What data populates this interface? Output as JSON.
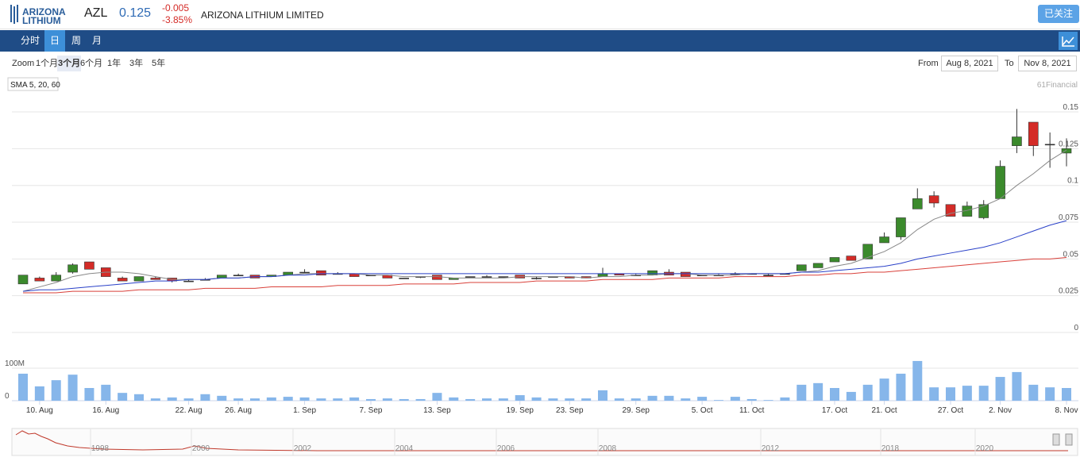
{
  "header": {
    "logo_line1": "ARIZONA",
    "logo_line2": "LITHIUM",
    "symbol": "AZL",
    "price": "0.125",
    "change": "-0.005",
    "change_pct": "-3.85%",
    "name": "ARIZONA LITHIUM LIMITED",
    "follow_button": "已关注"
  },
  "tabs": {
    "items": [
      "分时",
      "日",
      "周",
      "月"
    ],
    "active": 1
  },
  "zoom": {
    "label": "Zoom",
    "options": [
      "1个月",
      "3个月",
      "6个月",
      "1年",
      "3年",
      "5年"
    ],
    "active": 1
  },
  "range": {
    "from_label": "From",
    "from": "Aug 8, 2021",
    "to_label": "To",
    "to": "Nov 8, 2021"
  },
  "chart_data": {
    "type": "candlestick",
    "indicator_label": "SMA 5, 20, 60",
    "credit": "61Financial",
    "categories": [
      null,
      "10. Aug",
      null,
      null,
      null,
      "16. Aug",
      null,
      null,
      null,
      null,
      "22. Aug",
      null,
      null,
      "26. Aug",
      null,
      null,
      null,
      "1. Sep",
      null,
      null,
      null,
      "7. Sep",
      null,
      null,
      null,
      "13. Sep",
      null,
      null,
      null,
      null,
      "19. Sep",
      null,
      null,
      "23. Sep",
      null,
      null,
      null,
      "29. Sep",
      null,
      null,
      null,
      "5. Oct",
      null,
      null,
      "11. Oct",
      null,
      null,
      null,
      null,
      "17. Oct",
      null,
      null,
      "21. Oct",
      null,
      null,
      null,
      "27. Oct",
      null,
      null,
      "2. Nov",
      null,
      null,
      null,
      "8. Nov"
    ],
    "open": [
      0.033,
      0.037,
      0.035,
      0.041,
      0.048,
      0.044,
      0.037,
      0.035,
      0.037,
      0.037,
      0.035,
      0.036,
      0.037,
      0.039,
      0.039,
      0.038,
      0.039,
      0.041,
      0.042,
      0.04,
      0.04,
      0.039,
      0.039,
      0.037,
      0.038,
      0.039,
      0.036,
      0.038,
      0.038,
      0.038,
      0.039,
      0.037,
      0.038,
      0.038,
      0.038,
      0.038,
      0.04,
      0.039,
      0.039,
      0.041,
      0.041,
      0.039,
      0.039,
      0.04,
      0.04,
      0.039,
      0.04,
      0.042,
      0.044,
      0.048,
      0.052,
      0.05,
      0.061,
      0.065,
      0.084,
      0.093,
      0.087,
      0.079,
      0.078,
      0.091,
      0.127,
      0.143,
      0.128,
      0.122
    ],
    "high": [
      0.039,
      0.038,
      0.041,
      0.047,
      0.048,
      0.044,
      0.038,
      0.038,
      0.038,
      0.037,
      0.036,
      0.037,
      0.039,
      0.04,
      0.039,
      0.039,
      0.041,
      0.043,
      0.042,
      0.041,
      0.04,
      0.039,
      0.039,
      0.037,
      0.038,
      0.039,
      0.037,
      0.038,
      0.039,
      0.038,
      0.039,
      0.038,
      0.038,
      0.038,
      0.038,
      0.044,
      0.04,
      0.04,
      0.042,
      0.043,
      0.041,
      0.039,
      0.04,
      0.041,
      0.04,
      0.04,
      0.04,
      0.046,
      0.047,
      0.051,
      0.052,
      0.06,
      0.068,
      0.078,
      0.098,
      0.096,
      0.087,
      0.089,
      0.09,
      0.117,
      0.152,
      0.143,
      0.136,
      0.132
    ],
    "low": [
      0.033,
      0.035,
      0.035,
      0.04,
      0.043,
      0.038,
      0.035,
      0.035,
      0.036,
      0.034,
      0.035,
      0.036,
      0.037,
      0.039,
      0.037,
      0.038,
      0.039,
      0.041,
      0.039,
      0.04,
      0.038,
      0.039,
      0.037,
      0.037,
      0.037,
      0.036,
      0.036,
      0.038,
      0.038,
      0.038,
      0.037,
      0.036,
      0.038,
      0.037,
      0.037,
      0.038,
      0.039,
      0.039,
      0.039,
      0.039,
      0.038,
      0.039,
      0.039,
      0.04,
      0.04,
      0.039,
      0.04,
      0.042,
      0.044,
      0.048,
      0.049,
      0.05,
      0.061,
      0.063,
      0.084,
      0.085,
      0.079,
      0.079,
      0.077,
      0.091,
      0.122,
      0.12,
      0.112,
      0.113
    ],
    "close": [
      0.039,
      0.035,
      0.039,
      0.046,
      0.043,
      0.038,
      0.035,
      0.038,
      0.036,
      0.035,
      0.035,
      0.036,
      0.039,
      0.039,
      0.037,
      0.039,
      0.041,
      0.041,
      0.039,
      0.04,
      0.038,
      0.039,
      0.037,
      0.037,
      0.038,
      0.036,
      0.037,
      0.038,
      0.038,
      0.038,
      0.037,
      0.037,
      0.038,
      0.037,
      0.037,
      0.04,
      0.039,
      0.039,
      0.042,
      0.039,
      0.038,
      0.039,
      0.039,
      0.04,
      0.04,
      0.039,
      0.04,
      0.046,
      0.047,
      0.051,
      0.049,
      0.06,
      0.065,
      0.078,
      0.091,
      0.088,
      0.079,
      0.086,
      0.087,
      0.113,
      0.133,
      0.127,
      0.128,
      0.125
    ],
    "up_color": "#3b8a2c",
    "down_color": "#d42b27",
    "sma": [
      {
        "color": "#888888",
        "values": [
          0.028,
          0.031,
          0.034,
          0.038,
          0.04,
          0.041,
          0.041,
          0.04,
          0.038,
          0.036,
          0.036,
          0.036,
          0.037,
          0.037,
          0.038,
          0.038,
          0.039,
          0.04,
          0.04,
          0.04,
          0.04,
          0.039,
          0.039,
          0.038,
          0.038,
          0.038,
          0.037,
          0.037,
          0.037,
          0.037,
          0.038,
          0.038,
          0.038,
          0.038,
          0.037,
          0.038,
          0.038,
          0.039,
          0.039,
          0.04,
          0.04,
          0.039,
          0.039,
          0.039,
          0.04,
          0.04,
          0.04,
          0.041,
          0.042,
          0.045,
          0.047,
          0.051,
          0.055,
          0.061,
          0.07,
          0.077,
          0.081,
          0.083,
          0.086,
          0.091,
          0.1,
          0.108,
          0.117,
          0.124
        ]
      },
      {
        "color": "#2940c8",
        "values": [
          0.028,
          0.029,
          0.029,
          0.03,
          0.031,
          0.032,
          0.033,
          0.034,
          0.035,
          0.035,
          0.036,
          0.036,
          0.037,
          0.037,
          0.038,
          0.038,
          0.039,
          0.039,
          0.04,
          0.04,
          0.04,
          0.04,
          0.04,
          0.04,
          0.04,
          0.04,
          0.04,
          0.04,
          0.04,
          0.04,
          0.04,
          0.04,
          0.04,
          0.04,
          0.04,
          0.04,
          0.04,
          0.04,
          0.04,
          0.04,
          0.04,
          0.04,
          0.04,
          0.04,
          0.04,
          0.04,
          0.04,
          0.041,
          0.041,
          0.042,
          0.043,
          0.044,
          0.045,
          0.047,
          0.05,
          0.052,
          0.054,
          0.056,
          0.058,
          0.061,
          0.065,
          0.069,
          0.073,
          0.076
        ]
      },
      {
        "color": "#d9403a",
        "values": [
          0.027,
          0.027,
          0.027,
          0.028,
          0.028,
          0.028,
          0.028,
          0.029,
          0.029,
          0.029,
          0.029,
          0.03,
          0.03,
          0.03,
          0.03,
          0.031,
          0.031,
          0.031,
          0.031,
          0.032,
          0.032,
          0.032,
          0.032,
          0.033,
          0.033,
          0.033,
          0.033,
          0.034,
          0.034,
          0.034,
          0.034,
          0.035,
          0.035,
          0.035,
          0.035,
          0.036,
          0.036,
          0.036,
          0.036,
          0.037,
          0.037,
          0.037,
          0.037,
          0.038,
          0.038,
          0.038,
          0.038,
          0.039,
          0.039,
          0.04,
          0.04,
          0.041,
          0.041,
          0.042,
          0.043,
          0.044,
          0.045,
          0.046,
          0.047,
          0.048,
          0.049,
          0.05,
          0.05,
          0.051
        ]
      }
    ],
    "ylim": [
      0,
      0.16
    ],
    "yticks": [
      0,
      0.025,
      0.05,
      0.075,
      0.1,
      0.125,
      0.15
    ],
    "grid": true,
    "volume": {
      "color": "#86b6ea",
      "values": [
        83000000,
        44000000,
        63000000,
        80000000,
        39000000,
        49000000,
        24000000,
        20000000,
        7000000,
        10000000,
        7000000,
        20000000,
        15000000,
        7000000,
        7000000,
        10000000,
        12000000,
        10000000,
        7000000,
        7000000,
        10000000,
        5000000,
        7000000,
        5000000,
        5000000,
        24000000,
        10000000,
        5000000,
        7000000,
        7000000,
        17000000,
        10000000,
        7000000,
        7000000,
        7000000,
        32000000,
        7000000,
        7000000,
        15000000,
        15000000,
        7000000,
        12000000,
        2000000,
        12000000,
        5000000,
        2000000,
        10000000,
        49000000,
        54000000,
        39000000,
        27000000,
        49000000,
        68000000,
        83000000,
        122000000,
        41000000,
        41000000,
        46000000,
        46000000,
        73000000,
        88000000,
        49000000,
        41000000,
        39000000
      ],
      "ylim": [
        0,
        195000000
      ],
      "yticks": [
        0,
        {
          "value": 100000000,
          "label": "100M"
        }
      ]
    },
    "navigator": {
      "labels": [
        "1998",
        "2000",
        "2002",
        "2004",
        "2006",
        "2008",
        "2012",
        "2018",
        "2020"
      ]
    }
  }
}
